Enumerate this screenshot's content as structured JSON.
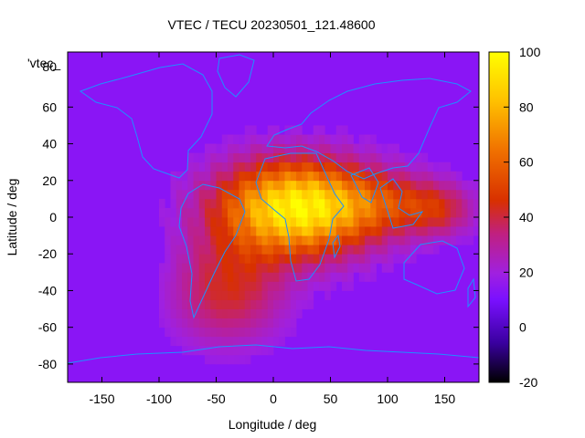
{
  "chart_data": {
    "type": "heatmap",
    "title": "VTEC / TECU 20230501_121.48600",
    "xlabel": "Longitude / deg",
    "ylabel": "Latitude / deg",
    "series_label": "'vtec_",
    "xlim": [
      -180,
      180
    ],
    "ylim": [
      -90,
      90
    ],
    "x_ticks": [
      -150,
      -100,
      -50,
      0,
      50,
      100,
      150
    ],
    "y_ticks": [
      60,
      40,
      20,
      0,
      -20,
      -40,
      -60,
      -80
    ],
    "y_tick_top": "80",
    "colorbar": {
      "range": [
        -20,
        100
      ],
      "ticks": [
        100,
        80,
        60,
        40,
        20,
        0,
        -20
      ],
      "colormap": "gnuplot-traditional",
      "stops": [
        "#000000",
        "#3a00a0",
        "#7a10ff",
        "#a020e0",
        "#c02080",
        "#d83000",
        "#f07000",
        "#ffc000",
        "#ffff00"
      ]
    },
    "features": {
      "background_level": 15,
      "peak_level": 100,
      "peak_region_lon": [
        -30,
        60
      ],
      "peak_region_lat": [
        -10,
        25
      ],
      "coastline_color": "#1e90ff"
    }
  }
}
